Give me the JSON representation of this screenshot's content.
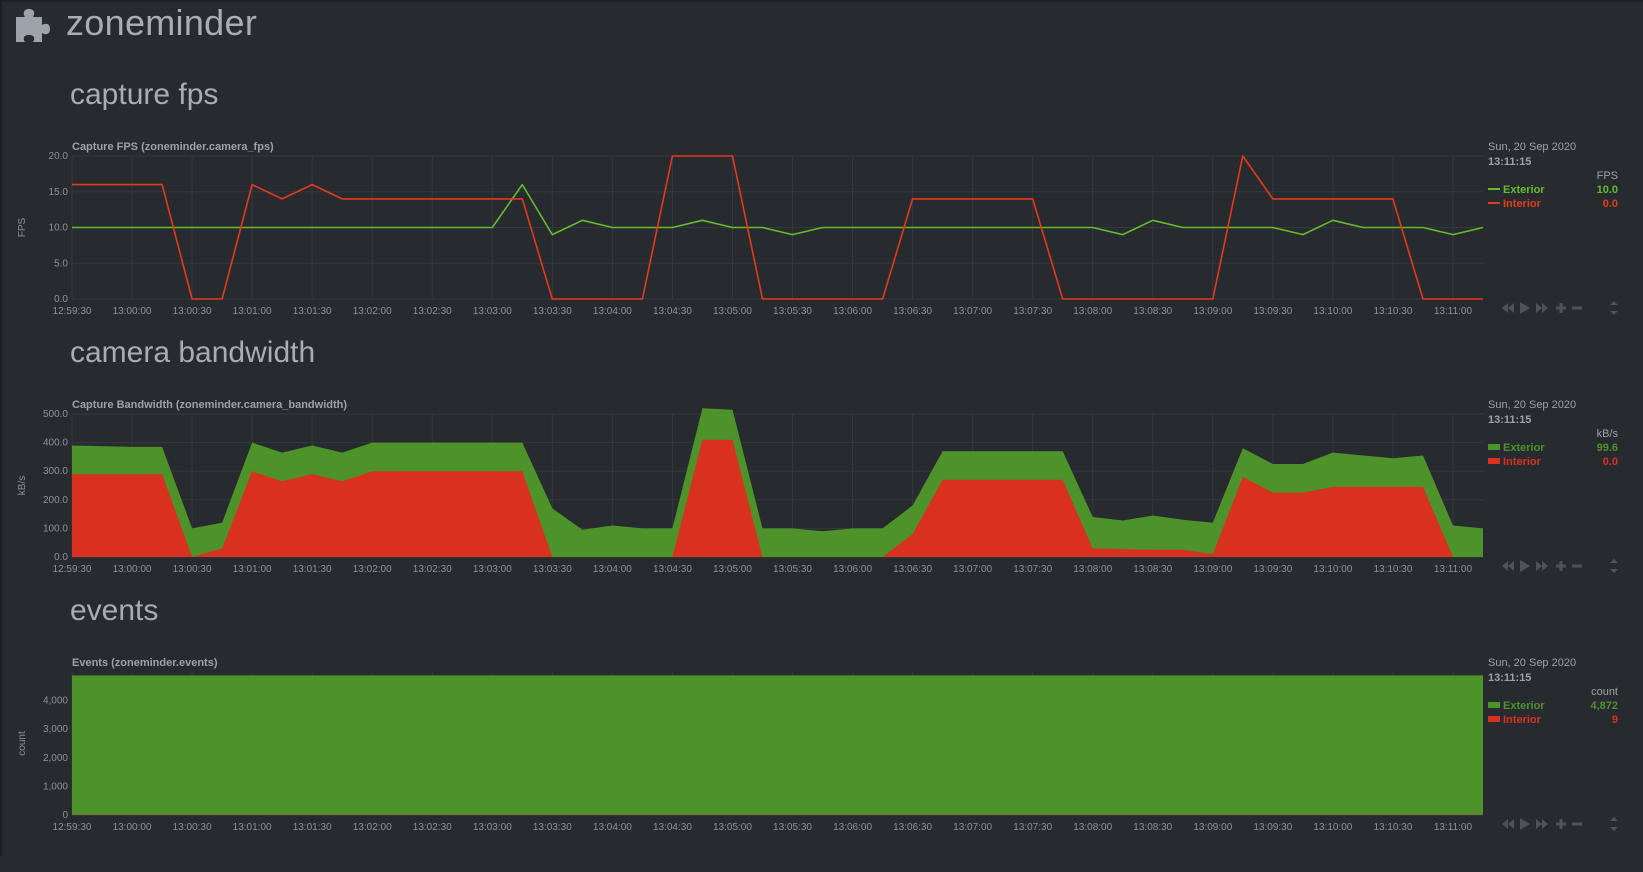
{
  "app": {
    "title": "zoneminder",
    "logo_icon": "puzzle-piece-icon"
  },
  "colors": {
    "background": "#272b30",
    "exterior": "#4e922a",
    "exterior_line": "#66bb2c",
    "interior": "#d9311f",
    "interior_line": "#e4391b"
  },
  "x_axis_ticks": [
    "12:59:30",
    "13:00:00",
    "13:00:30",
    "13:01:00",
    "13:01:30",
    "13:02:00",
    "13:02:30",
    "13:03:00",
    "13:03:30",
    "13:04:00",
    "13:04:30",
    "13:05:00",
    "13:05:30",
    "13:06:00",
    "13:06:30",
    "13:07:00",
    "13:07:30",
    "13:08:00",
    "13:08:30",
    "13:09:00",
    "13:09:30",
    "13:10:00",
    "13:10:30",
    "13:11:00"
  ],
  "controls": {
    "icons": [
      "rewind-icon",
      "play-icon",
      "fast-forward-icon",
      "zoom-in-icon",
      "zoom-out-icon",
      "resize-icon"
    ]
  },
  "sections": [
    {
      "heading": "capture fps",
      "title": "Capture FPS (zoneminder.camera_fps)",
      "date": "Sun, 20 Sep 2020",
      "time": "13:11:15",
      "units": "FPS",
      "y_label": "FPS",
      "y_ticks": [
        "20.0",
        "15.0",
        "10.0",
        "5.0",
        "0.0"
      ],
      "legend": [
        {
          "name": "Exterior",
          "value": "10.0"
        },
        {
          "name": "Interior",
          "value": "0.0"
        }
      ]
    },
    {
      "heading": "camera bandwidth",
      "title": "Capture Bandwidth (zoneminder.camera_bandwidth)",
      "date": "Sun, 20 Sep 2020",
      "time": "13:11:15",
      "units": "kB/s",
      "y_label": "kB/s",
      "y_ticks": [
        "500.0",
        "400.0",
        "300.0",
        "200.0",
        "100.0",
        "0.0"
      ],
      "legend": [
        {
          "name": "Exterior",
          "value": "99.6"
        },
        {
          "name": "Interior",
          "value": "0.0"
        }
      ]
    },
    {
      "heading": "events",
      "title": "Events (zoneminder.events)",
      "date": "Sun, 20 Sep 2020",
      "time": "13:11:15",
      "units": "count",
      "y_label": "count",
      "y_ticks": [
        "4,000",
        "3,000",
        "2,000",
        "1,000",
        "0"
      ],
      "legend": [
        {
          "name": "Exterior",
          "value": "4,872"
        },
        {
          "name": "Interior",
          "value": "9"
        }
      ]
    }
  ],
  "chart_data": [
    {
      "type": "line",
      "title": "Capture FPS (zoneminder.camera_fps)",
      "ylabel": "FPS",
      "xlim": [
        "12:59:30",
        "13:11:15"
      ],
      "ylim": [
        0,
        20
      ],
      "series": [
        {
          "name": "Exterior",
          "color": "#66bb2c",
          "x": [
            "12:59:30",
            "13:02:00",
            "13:03:00",
            "13:03:15",
            "13:03:30",
            "13:03:45",
            "13:04:00",
            "13:04:30",
            "13:04:45",
            "13:05:00",
            "13:05:15",
            "13:05:30",
            "13:05:45",
            "13:06:00",
            "13:07:30",
            "13:08:00",
            "13:08:15",
            "13:08:30",
            "13:08:45",
            "13:09:00",
            "13:09:30",
            "13:09:45",
            "13:10:00",
            "13:10:15",
            "13:10:30",
            "13:10:45",
            "13:11:00",
            "13:11:15"
          ],
          "values": [
            10,
            10,
            10,
            16,
            9,
            11,
            10,
            10,
            11,
            10,
            10,
            9,
            10,
            10,
            10,
            10,
            9,
            11,
            10,
            10,
            10,
            9,
            11,
            10,
            10,
            10,
            9,
            10
          ]
        },
        {
          "name": "Interior",
          "color": "#e4391b",
          "x": [
            "12:59:30",
            "13:00:00",
            "13:00:15",
            "13:00:30",
            "13:00:45",
            "13:01:00",
            "13:01:15",
            "13:01:30",
            "13:01:45",
            "13:02:00",
            "13:03:00",
            "13:03:15",
            "13:03:30",
            "13:04:00",
            "13:04:15",
            "13:04:30",
            "13:05:00",
            "13:05:15",
            "13:05:30",
            "13:06:00",
            "13:06:15",
            "13:06:30",
            "13:07:00",
            "13:07:30",
            "13:07:45",
            "13:08:00",
            "13:08:30",
            "13:09:00",
            "13:09:15",
            "13:09:30",
            "13:10:00",
            "13:10:30",
            "13:10:45",
            "13:11:00",
            "13:11:15"
          ],
          "values": [
            16,
            16,
            16,
            0,
            0,
            16,
            14,
            16,
            14,
            14,
            14,
            14,
            0,
            0,
            0,
            20,
            20,
            0,
            0,
            0,
            0,
            14,
            14,
            14,
            0,
            0,
            0,
            0,
            20,
            14,
            14,
            14,
            0,
            0,
            0
          ]
        }
      ]
    },
    {
      "type": "area",
      "title": "Capture Bandwidth (zoneminder.camera_bandwidth)",
      "ylabel": "kB/s",
      "xlim": [
        "12:59:30",
        "13:11:15"
      ],
      "ylim": [
        0,
        500
      ],
      "stacked": true,
      "series": [
        {
          "name": "Interior",
          "color": "#d9311f",
          "x": [
            "12:59:30",
            "13:00:00",
            "13:00:15",
            "13:00:30",
            "13:00:45",
            "13:01:00",
            "13:01:15",
            "13:01:30",
            "13:01:45",
            "13:02:00",
            "13:03:00",
            "13:03:15",
            "13:03:30",
            "13:04:00",
            "13:04:15",
            "13:04:30",
            "13:04:45",
            "13:05:00",
            "13:05:15",
            "13:05:30",
            "13:06:00",
            "13:06:15",
            "13:06:30",
            "13:06:45",
            "13:07:00",
            "13:07:30",
            "13:07:45",
            "13:08:00",
            "13:08:30",
            "13:08:45",
            "13:09:00",
            "13:09:15",
            "13:09:30",
            "13:09:45",
            "13:10:00",
            "13:10:30",
            "13:10:45",
            "13:11:00",
            "13:11:15"
          ],
          "values": [
            290,
            290,
            290,
            0,
            30,
            300,
            265,
            290,
            265,
            300,
            300,
            300,
            0,
            0,
            0,
            0,
            410,
            410,
            0,
            0,
            0,
            0,
            80,
            270,
            270,
            270,
            270,
            30,
            25,
            25,
            10,
            280,
            225,
            225,
            245,
            245,
            245,
            0,
            0
          ]
        },
        {
          "name": "Exterior",
          "color": "#4e922a",
          "x": [
            "12:59:30",
            "13:00:00",
            "13:00:15",
            "13:00:30",
            "13:00:45",
            "13:01:00",
            "13:01:15",
            "13:01:30",
            "13:01:45",
            "13:02:00",
            "13:03:00",
            "13:03:15",
            "13:03:30",
            "13:03:45",
            "13:04:00",
            "13:04:15",
            "13:04:30",
            "13:04:45",
            "13:05:00",
            "13:05:15",
            "13:05:30",
            "13:05:45",
            "13:06:00",
            "13:06:15",
            "13:06:30",
            "13:06:45",
            "13:07:00",
            "13:07:30",
            "13:07:45",
            "13:08:00",
            "13:08:15",
            "13:08:30",
            "13:08:45",
            "13:09:00",
            "13:09:15",
            "13:09:30",
            "13:09:45",
            "13:10:00",
            "13:10:30",
            "13:10:45",
            "13:11:00",
            "13:11:15"
          ],
          "values": [
            100,
            95,
            95,
            100,
            90,
            100,
            100,
            100,
            100,
            100,
            100,
            100,
            170,
            95,
            110,
            100,
            100,
            110,
            105,
            100,
            100,
            90,
            100,
            100,
            100,
            100,
            100,
            100,
            100,
            110,
            100,
            120,
            105,
            110,
            100,
            100,
            100,
            120,
            100,
            110,
            110,
            100
          ]
        }
      ]
    },
    {
      "type": "area",
      "title": "Events (zoneminder.events)",
      "ylabel": "count",
      "xlim": [
        "12:59:30",
        "13:11:15"
      ],
      "ylim": [
        0,
        5000
      ],
      "stacked": true,
      "series": [
        {
          "name": "Interior",
          "color": "#d9311f",
          "x": [
            "12:59:30",
            "13:11:15"
          ],
          "values": [
            9,
            9
          ]
        },
        {
          "name": "Exterior",
          "color": "#4e922a",
          "x": [
            "12:59:30",
            "13:11:15"
          ],
          "values": [
            4872,
            4872
          ]
        }
      ]
    }
  ]
}
